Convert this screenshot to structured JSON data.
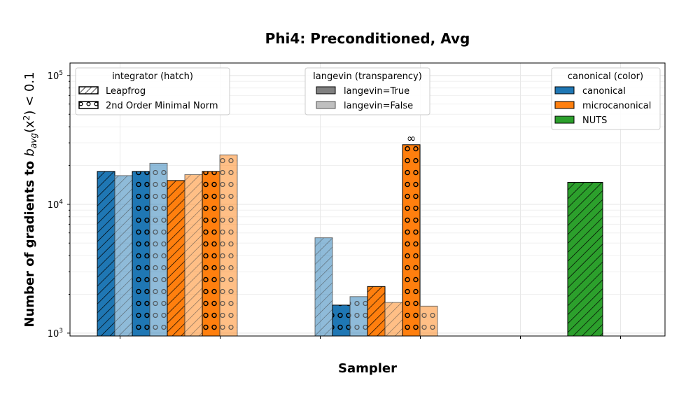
{
  "chart_data": {
    "type": "bar",
    "title": "Phi4: Preconditioned, Avg",
    "xlabel": "Sampler",
    "ylabel_main": "Number of gradients to ",
    "ylabel_math": "b",
    "ylabel_sub": "avg",
    "ylabel_tail": "(x",
    "ylabel_sup": "2",
    "ylabel_end": ") < 0.1",
    "yscale": "log",
    "ylim": [
      950,
      125000
    ],
    "yticks": [
      {
        "base": "10",
        "exp": "3",
        "value": 1000
      },
      {
        "base": "10",
        "exp": "4",
        "value": 10000
      },
      {
        "base": "10",
        "exp": "5",
        "value": 100000
      }
    ],
    "grid": true,
    "colors": {
      "canonical": "#1f77b4",
      "microcanonical": "#ff7f0e",
      "NUTS": "#2ca02c"
    },
    "legends": [
      {
        "title": "integrator (hatch)",
        "placement": "top-left",
        "entries": [
          {
            "label": "Leapfrog",
            "swatch": "hatch-leapfrog"
          },
          {
            "label": "2nd Order Minimal Norm",
            "swatch": "hatch-mn"
          }
        ]
      },
      {
        "title": "langevin (transparency)",
        "placement": "top-center",
        "entries": [
          {
            "label": "langevin=True",
            "swatch": "#808080"
          },
          {
            "label": "langevin=False",
            "swatch": "#bfbfbf"
          }
        ]
      },
      {
        "title": "canonical (color)",
        "placement": "top-right",
        "entries": [
          {
            "label": "canonical",
            "swatch": "#1f77b4"
          },
          {
            "label": "microcanonical",
            "swatch": "#ff7f0e"
          },
          {
            "label": "NUTS",
            "swatch": "#2ca02c"
          }
        ]
      }
    ],
    "x_ticks": 6,
    "bars": [
      {
        "group": 0,
        "slot": 0,
        "method": "canonical",
        "integrator": "Leapfrog",
        "langevin": true,
        "value": 18000
      },
      {
        "group": 0,
        "slot": 1,
        "method": "canonical",
        "integrator": "Leapfrog",
        "langevin": false,
        "value": 16700
      },
      {
        "group": 0,
        "slot": 2,
        "method": "canonical",
        "integrator": "2nd Order Minimal Norm",
        "langevin": true,
        "value": 18000
      },
      {
        "group": 0,
        "slot": 3,
        "method": "canonical",
        "integrator": "2nd Order Minimal Norm",
        "langevin": false,
        "value": 20800
      },
      {
        "group": 0,
        "slot": 4,
        "method": "microcanonical",
        "integrator": "Leapfrog",
        "langevin": true,
        "value": 15300
      },
      {
        "group": 0,
        "slot": 5,
        "method": "microcanonical",
        "integrator": "Leapfrog",
        "langevin": false,
        "value": 17000
      },
      {
        "group": 0,
        "slot": 6,
        "method": "microcanonical",
        "integrator": "2nd Order Minimal Norm",
        "langevin": true,
        "value": 18000
      },
      {
        "group": 0,
        "slot": 7,
        "method": "microcanonical",
        "integrator": "2nd Order Minimal Norm",
        "langevin": false,
        "value": 24200
      },
      {
        "group": 1,
        "slot": 1,
        "method": "canonical",
        "integrator": "Leapfrog",
        "langevin": false,
        "value": 5500
      },
      {
        "group": 1,
        "slot": 2,
        "method": "canonical",
        "integrator": "2nd Order Minimal Norm",
        "langevin": true,
        "value": 1650
      },
      {
        "group": 1,
        "slot": 3,
        "method": "canonical",
        "integrator": "2nd Order Minimal Norm",
        "langevin": false,
        "value": 1920
      },
      {
        "group": 1,
        "slot": 4,
        "method": "microcanonical",
        "integrator": "Leapfrog",
        "langevin": true,
        "value": 2300
      },
      {
        "group": 1,
        "slot": 5,
        "method": "microcanonical",
        "integrator": "Leapfrog",
        "langevin": false,
        "value": 1730
      },
      {
        "group": 1,
        "slot": 6,
        "method": "microcanonical",
        "integrator": "2nd Order Minimal Norm",
        "langevin": true,
        "value": 29000,
        "annotation": "∞"
      },
      {
        "group": 1,
        "slot": 7,
        "method": "microcanonical",
        "integrator": "2nd Order Minimal Norm",
        "langevin": false,
        "value": 1620
      },
      {
        "group": 2,
        "slot": 0,
        "method": "NUTS",
        "integrator": "Leapfrog",
        "langevin": true,
        "value": 14800,
        "double_width": true
      }
    ]
  }
}
